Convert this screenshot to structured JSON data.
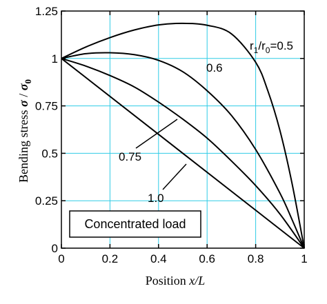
{
  "chart_data": {
    "type": "line",
    "xlabel_prefix": "Position ",
    "xlabel_var": "x/L",
    "ylabel_prefix": "Bending stress ",
    "ylabel_sigma": "σ",
    "ylabel_slash": " / ",
    "ylabel_sigma0": "σ",
    "ylabel_sub0": "0",
    "xlim": [
      0,
      1
    ],
    "ylim": [
      0,
      1.25
    ],
    "xticks": [
      0,
      0.2,
      0.4,
      0.6,
      0.8,
      1
    ],
    "xtick_labels": [
      "0",
      "0.2",
      "0.4",
      "0.6",
      "0.8",
      "1"
    ],
    "yticks": [
      0,
      0.25,
      0.5,
      0.75,
      1,
      1.25
    ],
    "ytick_labels": [
      "0",
      "0.25",
      "0.5",
      "0.75",
      "1",
      "1.25"
    ],
    "grid": true,
    "annotation_box": "Concentrated load",
    "series": [
      {
        "label": "0.5",
        "x": [
          0,
          0.1,
          0.2,
          0.3,
          0.4,
          0.5,
          0.6,
          0.7,
          0.8,
          0.85,
          0.9,
          0.95,
          1.0
        ],
        "values": [
          1.0,
          1.06,
          1.11,
          1.15,
          1.177,
          1.185,
          1.175,
          1.13,
          0.98,
          0.83,
          0.62,
          0.34,
          0.0
        ]
      },
      {
        "label": "0.6",
        "x": [
          0,
          0.1,
          0.2,
          0.3,
          0.4,
          0.5,
          0.6,
          0.7,
          0.8,
          0.9,
          0.95,
          1.0
        ],
        "values": [
          1.0,
          1.025,
          1.03,
          1.02,
          0.99,
          0.93,
          0.83,
          0.7,
          0.52,
          0.29,
          0.15,
          0.0
        ]
      },
      {
        "label": "0.75",
        "x": [
          0,
          0.1,
          0.2,
          0.3,
          0.4,
          0.5,
          0.6,
          0.7,
          0.8,
          0.9,
          1.0
        ],
        "values": [
          1.0,
          0.96,
          0.91,
          0.85,
          0.77,
          0.68,
          0.58,
          0.46,
          0.33,
          0.18,
          0.0
        ]
      },
      {
        "label": "1.0",
        "x": [
          0,
          1.0
        ],
        "values": [
          1.0,
          0.0
        ]
      }
    ],
    "curve_label_main": "r",
    "curve_label_sub1": "1",
    "curve_label_mid": "/r",
    "curve_label_sub0": "0",
    "curve_label_eq": "=0.5"
  }
}
